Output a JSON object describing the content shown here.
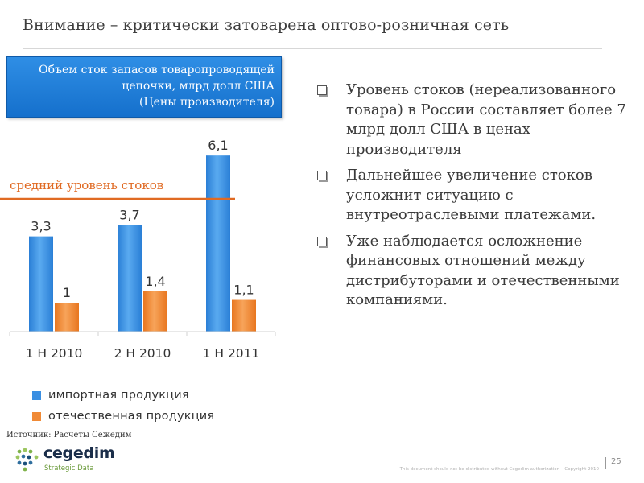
{
  "title": "Внимание – критически затоварена оптово-розничная сеть",
  "chart_box": {
    "lines": [
      "Объем сток запасов товаропроводящей",
      "цепочки, млрд долл США",
      "(Цены производителя)"
    ]
  },
  "average_label": "средний уровень стоков",
  "chart_data": {
    "type": "bar",
    "categories": [
      "1 H 2010",
      "2 H 2010",
      "1 H 2011"
    ],
    "series": [
      {
        "name": "импортная продукция",
        "values": [
          3.3,
          3.7,
          6.1
        ],
        "labels": [
          "3,3",
          "3,7",
          "6,1"
        ],
        "color": "#3a8fe2"
      },
      {
        "name": "отечественная продукция",
        "values": [
          1,
          1.4,
          1.1
        ],
        "labels": [
          "1",
          "1,4",
          "1,1"
        ],
        "color": "#f08a36"
      }
    ],
    "ylim": [
      0,
      6.3
    ],
    "average_level": 4.6,
    "grid": false,
    "legend_position": "bottom"
  },
  "bullets": [
    "Уровень стоков (нереализованного товара) в России составляет более 7 млрд  долл США в ценах производителя",
    "Дальнейшее увеличение стоков усложнит ситуацию с внутреотраслевыми платежами.",
    "Уже наблюдается осложнение финансовых отношений между дистрибуторами и отечественными компаниями."
  ],
  "source": "Источник: Расчеты Сежедим",
  "footer": {
    "disclaimer": "This document should not be distributed without Cegedim authorization – Copyright 2010",
    "page_number": "25"
  },
  "logo": {
    "name": "cegedim",
    "tagline": "Strategic Data"
  }
}
